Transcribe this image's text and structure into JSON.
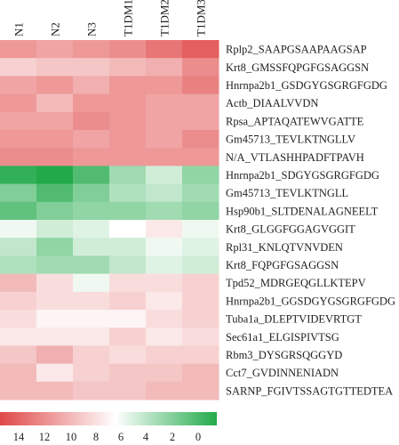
{
  "chart_data": {
    "type": "heatmap",
    "columns": [
      "N1",
      "N2",
      "N3",
      "T1DM1",
      "T1DM2",
      "T1DM3"
    ],
    "rows": [
      "Rplp2_SAAPGSAAPAAGSAP",
      "Krt8_GMSSFQPGFGSAGGSN",
      "Hnrnpa2b1_GSDGYGSGRGFGDG",
      "Actb_DIAALVVDN",
      "Rpsa_APTAQATEWVGATTE",
      "Gm45713_TEVLKTNGLLV",
      "N/A_VTLASHHPADFTPAVH",
      "Hnrnpa2b1_SDGYGSGRGFGDG",
      "Gm45713_TEVLKTNGLL",
      "Hsp90b1_SLTDENALAGNEELT",
      "Krt8_GLGGFGGAGVGGIT",
      "Rpl31_KNLQTVNVDEN",
      "Krt8_FQPGFGSAGGSN",
      "Tpd52_MDRGEQGLLKTEPV",
      "Hnrnpa2b1_GGSDGYGSGRGFGDG",
      "Tuba1a_DLEPTVIDEVRTGT",
      "Sec61a1_ELGISPIVTSG",
      "Rbm3_DYSGRSQGGYD",
      "Cct7_GVDINNENIADN",
      "SARNP_FGIVTSSAGTGTTEDTEA"
    ],
    "values": [
      [
        11.5,
        11.0,
        11.5,
        12.0,
        13.0,
        14.0
      ],
      [
        9.0,
        9.5,
        9.5,
        10.0,
        10.5,
        12.0
      ],
      [
        11.0,
        11.5,
        10.5,
        11.5,
        11.5,
        12.5
      ],
      [
        11.5,
        10.0,
        11.5,
        11.5,
        11.0,
        11.0
      ],
      [
        11.0,
        11.0,
        12.0,
        11.5,
        11.0,
        11.0
      ],
      [
        11.5,
        11.5,
        11.0,
        11.5,
        11.0,
        12.0
      ],
      [
        12.0,
        12.0,
        11.5,
        11.5,
        11.5,
        11.5
      ],
      [
        0.5,
        0.0,
        1.5,
        4.0,
        5.5,
        3.5
      ],
      [
        3.0,
        1.5,
        3.0,
        4.5,
        5.0,
        4.0
      ],
      [
        2.0,
        3.0,
        3.5,
        3.5,
        4.0,
        3.5
      ],
      [
        6.5,
        5.5,
        6.0,
        7.0,
        8.0,
        6.5
      ],
      [
        5.0,
        3.5,
        5.5,
        5.5,
        6.5,
        6.0
      ],
      [
        4.5,
        4.0,
        4.0,
        5.0,
        6.0,
        5.5
      ],
      [
        10.0,
        8.5,
        6.5,
        8.5,
        8.5,
        9.0
      ],
      [
        9.0,
        8.5,
        8.5,
        9.0,
        8.0,
        9.0
      ],
      [
        8.5,
        7.5,
        7.5,
        7.5,
        8.5,
        9.0
      ],
      [
        8.0,
        8.0,
        8.0,
        9.0,
        8.0,
        8.5
      ],
      [
        9.5,
        10.5,
        9.0,
        8.5,
        9.0,
        9.0
      ],
      [
        10.0,
        8.0,
        9.0,
        9.5,
        9.5,
        10.0
      ],
      [
        10.0,
        10.0,
        9.5,
        9.5,
        10.0,
        10.0
      ]
    ],
    "colorscale": {
      "min": 0,
      "max": 15,
      "high_color": "#e04848",
      "mid_color": "#ffffff",
      "low_color": "#22aa4a"
    },
    "colorbar_ticks": [
      "14",
      "12",
      "10",
      "8",
      "6",
      "4",
      "2",
      "0"
    ]
  }
}
